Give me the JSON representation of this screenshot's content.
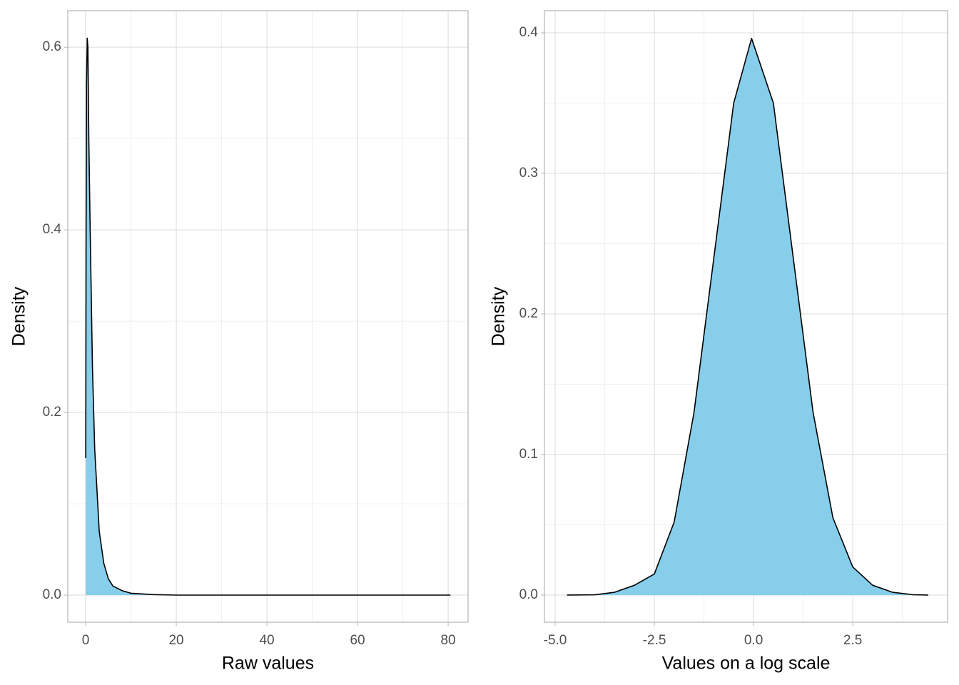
{
  "chart_data": [
    {
      "type": "density",
      "xlabel": "Raw values",
      "ylabel": "Density",
      "x": [
        0.02,
        0.1,
        0.2,
        0.35,
        0.5,
        0.7,
        1,
        1.5,
        2,
        3,
        4,
        5,
        6,
        8,
        10,
        15,
        20,
        40,
        60,
        80.5
      ],
      "values": [
        0.15,
        0.4,
        0.56,
        0.61,
        0.6,
        0.5,
        0.4,
        0.25,
        0.16,
        0.07,
        0.035,
        0.018,
        0.01,
        0.005,
        0.002,
        0.0005,
        0,
        0,
        0,
        0
      ],
      "color": "#87ceeb",
      "line_color": "#000000",
      "xlim": [
        -3.94,
        84.4
      ],
      "ylim": [
        -0.0297,
        0.64
      ],
      "xticks": [
        0,
        20,
        40,
        60,
        80
      ],
      "yticks": [
        {
          "value": 0,
          "label": "0.0"
        },
        0.2,
        0.4,
        0.6
      ],
      "minor_xticks": [
        10,
        30,
        50,
        70
      ],
      "minor_yticks": [
        0.1,
        0.3,
        0.5
      ],
      "grid": true
    },
    {
      "type": "density",
      "xlabel": "Values on a log scale",
      "ylabel": "Density",
      "x": [
        -4.7,
        -4,
        -3.5,
        -3,
        -2.5,
        -2,
        -1.5,
        -1,
        -0.5,
        -0.05,
        0.5,
        1,
        1.5,
        2,
        2.5,
        3,
        3.5,
        4,
        4.4
      ],
      "values": [
        0,
        0.0002,
        0.002,
        0.007,
        0.015,
        0.052,
        0.13,
        0.24,
        0.35,
        0.396,
        0.35,
        0.24,
        0.13,
        0.055,
        0.02,
        0.007,
        0.002,
        0.0003,
        0
      ],
      "color": "#87ceeb",
      "line_color": "#000000",
      "xlim": [
        -5.27,
        4.89
      ],
      "ylim": [
        -0.0193,
        0.4157
      ],
      "xticks": [
        {
          "value": -5,
          "label": "-5.0"
        },
        -2.5,
        {
          "value": 0,
          "label": "0.0"
        },
        2.5
      ],
      "yticks": [
        {
          "value": 0,
          "label": "0.0"
        },
        0.1,
        0.2,
        0.3,
        0.4
      ],
      "minor_xticks": [
        -3.75,
        -1.25,
        1.25,
        3.75
      ],
      "minor_yticks": [
        0.05,
        0.15,
        0.25,
        0.35
      ],
      "grid": true
    }
  ]
}
